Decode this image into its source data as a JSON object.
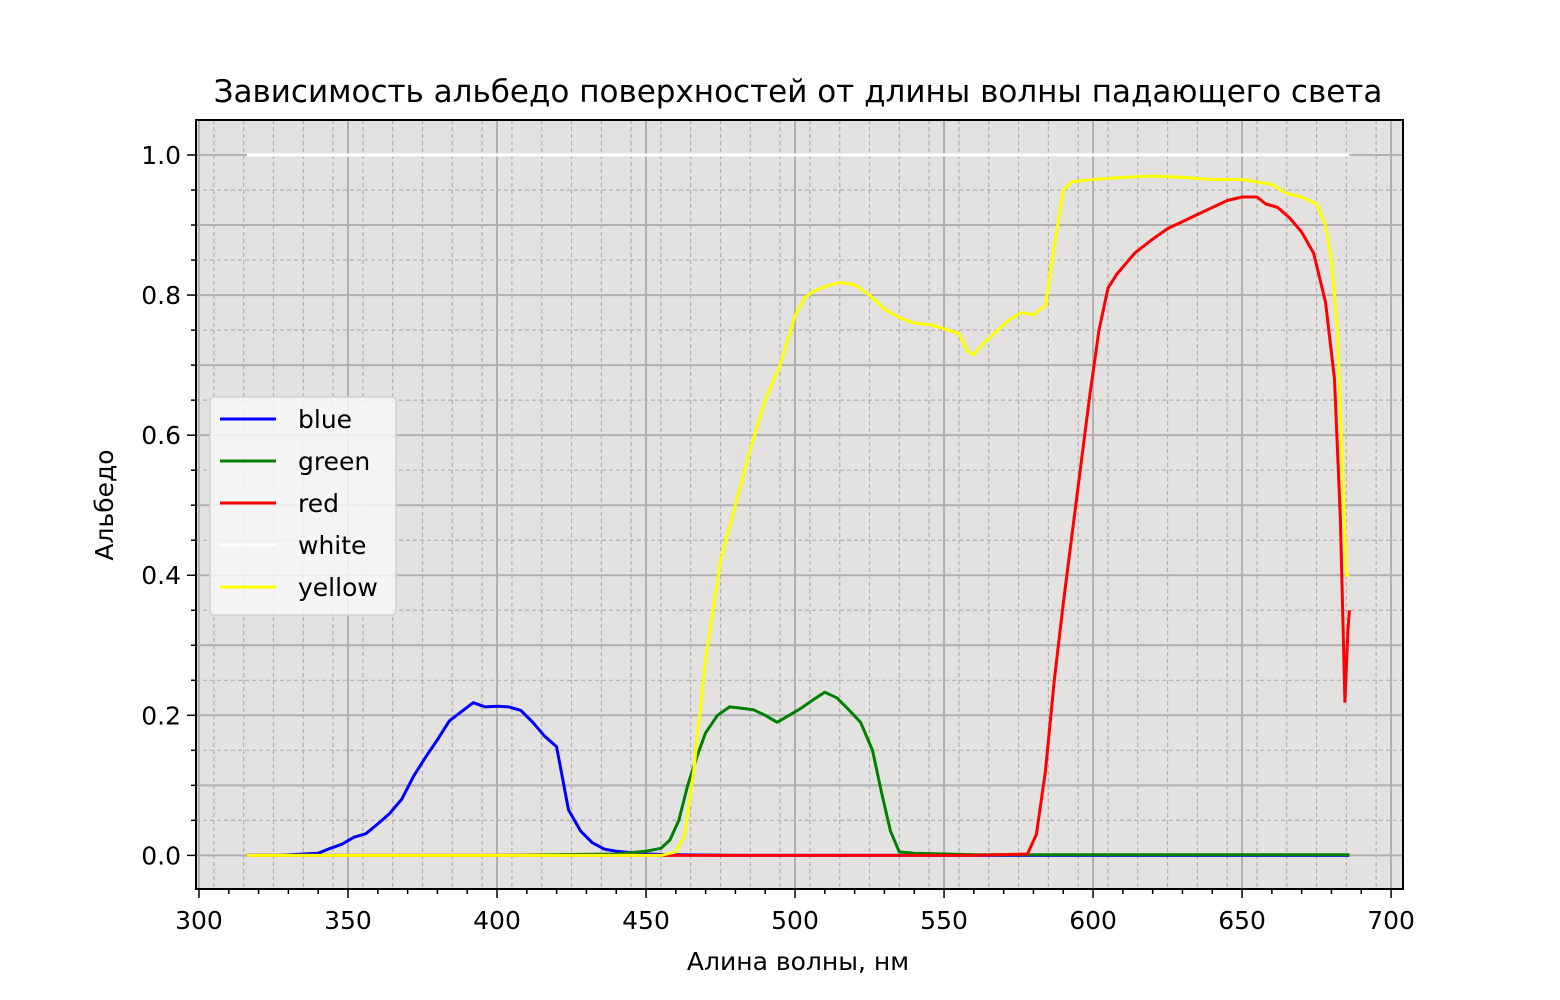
{
  "chart_data": {
    "type": "line",
    "title": "Зависимость альбедо поверхностей от длины волны падающего света",
    "xlabel": "Алина волны, нм",
    "ylabel": "Альбедо",
    "xlim": [
      299,
      704
    ],
    "ylim": [
      -0.048,
      1.05
    ],
    "xticks": [
      300,
      350,
      400,
      450,
      500,
      550,
      600,
      650,
      700
    ],
    "yticks": [
      0.0,
      0.2,
      0.4,
      0.6,
      0.8,
      1.0
    ],
    "xtick_labels": [
      "300",
      "350",
      "400",
      "450",
      "500",
      "550",
      "600",
      "650",
      "700"
    ],
    "ytick_labels": [
      "0.0",
      "0.2",
      "0.4",
      "0.6",
      "0.8",
      "1.0"
    ],
    "grid": "major solid + minor dashed",
    "legend_position": "center-left",
    "background": "#e3e2e1",
    "series": [
      {
        "name": "blue",
        "color": "#0000ff",
        "x": [
          316,
          320,
          327,
          340,
          344,
          348,
          352,
          356,
          360,
          364,
          368,
          372,
          376,
          380,
          384,
          388,
          392,
          396,
          400,
          404,
          408,
          412,
          416,
          420,
          424,
          428,
          432,
          436,
          440,
          445,
          450,
          460,
          480,
          520,
          560,
          600,
          640,
          686
        ],
        "y": [
          0.0,
          0.0,
          0.0,
          0.003,
          0.01,
          0.016,
          0.026,
          0.031,
          0.045,
          0.06,
          0.08,
          0.113,
          0.14,
          0.165,
          0.192,
          0.205,
          0.218,
          0.212,
          0.213,
          0.212,
          0.207,
          0.19,
          0.17,
          0.155,
          0.065,
          0.035,
          0.018,
          0.009,
          0.006,
          0.004,
          0.002,
          0.001,
          0.0,
          0.0,
          0.0,
          0.0,
          0.0,
          0.0
        ]
      },
      {
        "name": "green",
        "color": "#008000",
        "x": [
          316,
          320,
          327,
          400,
          440,
          450,
          455,
          458,
          461,
          464,
          467,
          470,
          474,
          478,
          482,
          486,
          490,
          494,
          498,
          502,
          506,
          510,
          514,
          518,
          522,
          526,
          529,
          532,
          535,
          540,
          560,
          600,
          640,
          686
        ],
        "y": [
          0.0,
          0.0,
          0.0,
          0.0,
          0.002,
          0.006,
          0.01,
          0.022,
          0.05,
          0.1,
          0.14,
          0.175,
          0.2,
          0.212,
          0.21,
          0.208,
          0.2,
          0.19,
          0.2,
          0.21,
          0.222,
          0.233,
          0.225,
          0.208,
          0.19,
          0.15,
          0.09,
          0.035,
          0.005,
          0.003,
          0.001,
          0.001,
          0.001,
          0.001
        ]
      },
      {
        "name": "red",
        "color": "#ff0000",
        "x": [
          316,
          320,
          327,
          560,
          578,
          581,
          584,
          587,
          590,
          593,
          596,
          599,
          602,
          605,
          608,
          611,
          614,
          617,
          620,
          625,
          630,
          635,
          640,
          645,
          650,
          655,
          658,
          662,
          666,
          670,
          674,
          678,
          681,
          683,
          684.5,
          685.5,
          686
        ],
        "y": [
          0.0,
          0.0,
          0.0,
          0.0,
          0.002,
          0.03,
          0.12,
          0.25,
          0.36,
          0.46,
          0.56,
          0.66,
          0.75,
          0.81,
          0.83,
          0.845,
          0.86,
          0.87,
          0.88,
          0.895,
          0.905,
          0.915,
          0.925,
          0.935,
          0.94,
          0.94,
          0.93,
          0.925,
          0.91,
          0.89,
          0.86,
          0.79,
          0.68,
          0.48,
          0.22,
          0.32,
          0.35
        ]
      },
      {
        "name": "white",
        "color": "#ffffff",
        "x": [
          316,
          320,
          327,
          686
        ],
        "y": [
          1.0,
          1.0,
          1.0,
          1.0
        ]
      },
      {
        "name": "yellow",
        "color": "#ffff00",
        "x": [
          316,
          320,
          327,
          455,
          460,
          463,
          466,
          470,
          475,
          480,
          485,
          490,
          495,
          500,
          503,
          506,
          510,
          515,
          520,
          525,
          530,
          535,
          540,
          545,
          550,
          555,
          558,
          560,
          563,
          568,
          572,
          576,
          580,
          584,
          587,
          590,
          593,
          600,
          610,
          620,
          630,
          640,
          650,
          660,
          665,
          670,
          675,
          678,
          680,
          682,
          684,
          685,
          686
        ],
        "y": [
          0.0,
          0.0,
          0.0,
          0.0,
          0.005,
          0.03,
          0.12,
          0.28,
          0.42,
          0.5,
          0.58,
          0.65,
          0.7,
          0.77,
          0.795,
          0.805,
          0.812,
          0.818,
          0.815,
          0.8,
          0.78,
          0.768,
          0.76,
          0.758,
          0.752,
          0.745,
          0.72,
          0.715,
          0.73,
          0.75,
          0.765,
          0.775,
          0.772,
          0.785,
          0.87,
          0.95,
          0.962,
          0.965,
          0.968,
          0.97,
          0.968,
          0.965,
          0.965,
          0.958,
          0.945,
          0.94,
          0.93,
          0.9,
          0.85,
          0.75,
          0.52,
          0.4,
          0.4
        ]
      }
    ]
  }
}
